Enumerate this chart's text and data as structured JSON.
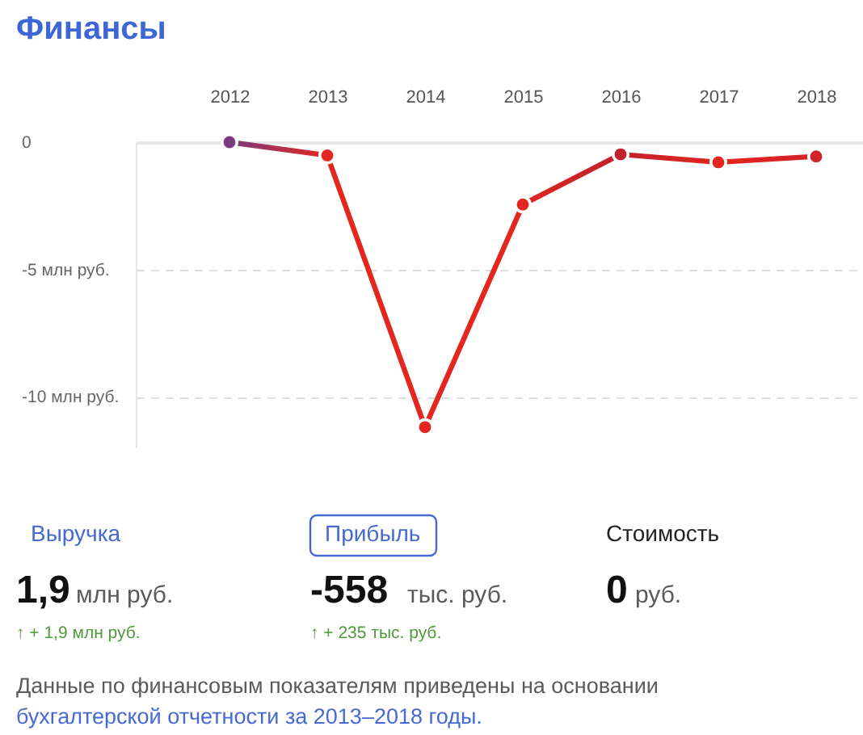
{
  "chart_data": {
    "type": "line",
    "title": "Финансы",
    "categories": [
      "2012",
      "2013",
      "2014",
      "2015",
      "2016",
      "2017",
      "2018"
    ],
    "series": [
      {
        "colors": [
          "#7b3b7e",
          "#e3261f",
          "#e3261f",
          "#e3261f",
          "#c0212b",
          "#e3261f",
          "#d3222b"
        ],
        "values": [
          0,
          -0.52,
          -11.2,
          -2.45,
          -0.48,
          -0.79,
          -0.56
        ]
      }
    ],
    "ylim": [
      -12,
      0
    ],
    "yticks": [
      0,
      {
        "value": -5,
        "label": "-5 млн руб."
      },
      {
        "value": -10,
        "label": "-10 млн руб."
      }
    ],
    "grid": "y",
    "marker": "circle",
    "annotations": [
      "Выручка",
      "Прибыль",
      "Стоимость",
      "1,9",
      "млн руб.",
      "-558",
      "тыс. руб.",
      "0",
      "руб.",
      "↑ + 1,9 млн руб.",
      "↑ + 235 тыс. руб.",
      "Данные по финансовым показателям приведены на основании",
      "бухгалтерской отчетности за 2013–2018 годы."
    ]
  }
}
